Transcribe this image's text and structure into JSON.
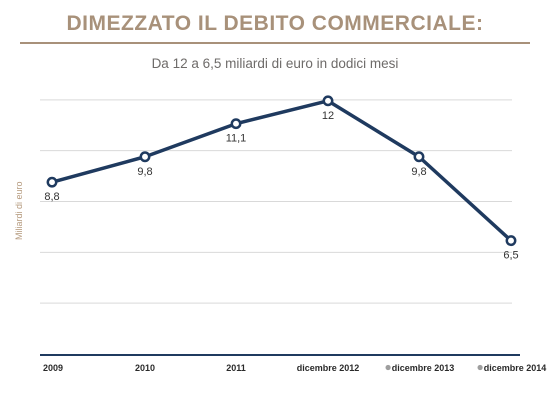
{
  "header": {
    "title": "DIMEZZATO IL DEBITO COMMERCIALE:",
    "subtitle": "Da 12 a 6,5 miliardi di euro in dodici mesi"
  },
  "colors": {
    "title": "#a8917a",
    "line": "#1f3a5f",
    "grid": "#d9d9d9",
    "axis": "#1f3a5f",
    "bullet": "#9e9e9e"
  },
  "chart_data": {
    "type": "line",
    "title": "DIMEZZATO IL DEBITO COMMERCIALE:",
    "subtitle": "Da 12 a 6,5 miliardi di euro in dodici mesi",
    "xlabel": "",
    "ylabel": "Miliardi di euro",
    "categories": [
      "2009",
      "2010",
      "2011",
      "dicembre 2012",
      "dicembre 2013",
      "dicembre 2014"
    ],
    "bulleted_categories": [
      false,
      false,
      false,
      false,
      true,
      true
    ],
    "values": [
      8.8,
      9.8,
      11.1,
      12,
      9.8,
      6.5
    ],
    "value_labels": [
      "8,8",
      "9,8",
      "11,1",
      "12",
      "9,8",
      "6,5"
    ],
    "ylim": [
      2,
      14
    ],
    "grid": true,
    "legend": "none"
  }
}
